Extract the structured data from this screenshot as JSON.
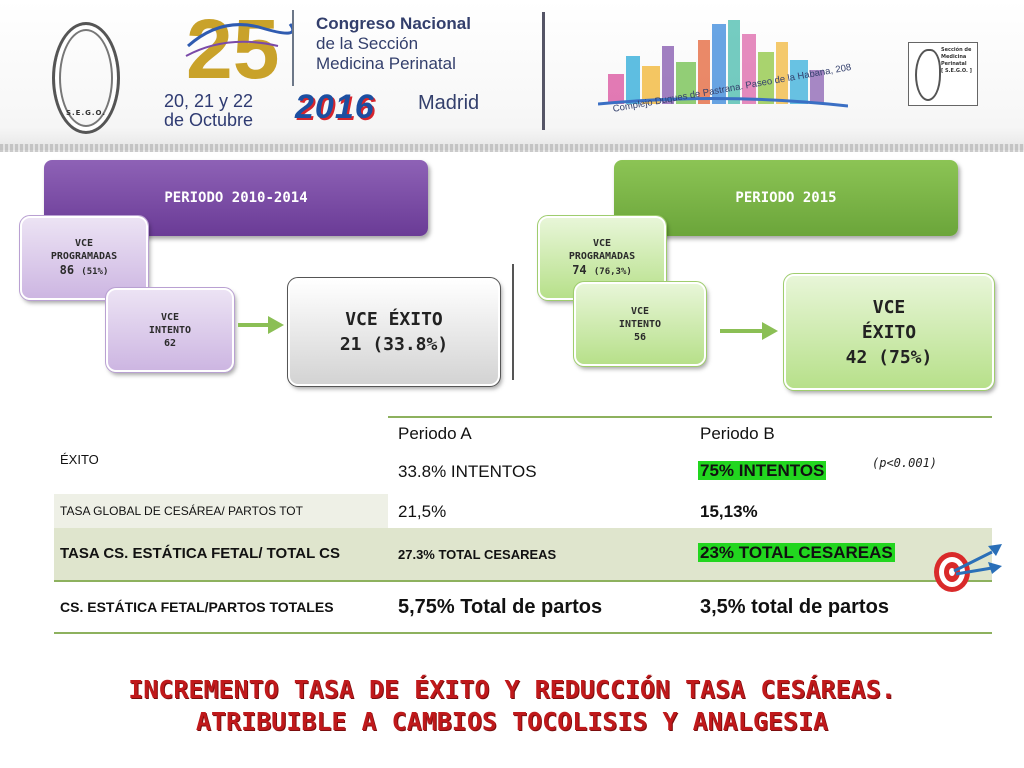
{
  "header": {
    "anniversary": "25",
    "congress_line1": "Congreso Nacional",
    "congress_line2": "de la Sección",
    "congress_line3": "Medicina Perinatal",
    "dates_line1": "20, 21 y 22",
    "dates_line2": "de Octubre",
    "year": "2016",
    "city": "Madrid",
    "venue": "Complejo Duques de Pastrana. Paseo de la Habana, 208",
    "seal_text": "S.E.G.O.",
    "section_logo_lines": [
      "Sección de",
      "Medicina",
      "Perinatal",
      "[ S.E.G.O. ]"
    ]
  },
  "periods": {
    "a": {
      "title": "PERIODO 2010-2014",
      "programadas_label_1": "VCE",
      "programadas_label_2": "PROGRAMADAS",
      "programadas_value": "86",
      "programadas_pct": "(51%)",
      "intento_label_1": "VCE",
      "intento_label_2": "INTENTO",
      "intento_value": "62",
      "exito_line1": "VCE ÉXITO",
      "exito_line2": "21 (33.8%)"
    },
    "b": {
      "title": "PERIODO 2015",
      "programadas_label_1": "VCE",
      "programadas_label_2": "PROGRAMADAS",
      "programadas_value": "74",
      "programadas_pct": "(76,3%)",
      "intento_label_1": "VCE",
      "intento_label_2": "INTENTO",
      "intento_value": "56",
      "exito_line1": "VCE",
      "exito_line2": "ÉXITO",
      "exito_line3": "42 (75%)"
    }
  },
  "table": {
    "col_a": "Periodo A",
    "col_b": "Periodo B",
    "p_value": "(p<0.001)",
    "rows": [
      {
        "label": "ÉXITO",
        "a": "33.8% INTENTOS",
        "b": "75% INTENTOS"
      },
      {
        "label": "TASA GLOBAL DE CESÁREA/ PARTOS TOT",
        "a": "21,5%",
        "b": "15,13%"
      },
      {
        "label": "TASA CS. ESTÁTICA FETAL/ TOTAL CS",
        "a": "27.3% TOTAL CESAREAS",
        "b": "23% TOTAL CESAREAS"
      },
      {
        "label": "CS. ESTÁTICA FETAL/PARTOS TOTALES",
        "a": "5,75% Total de partos",
        "b": "3,5% total de partos"
      }
    ]
  },
  "conclusion": {
    "line1": "INCREMENTO TASA DE ÉXITO Y REDUCCIÓN TASA CESÁREAS.",
    "line2": "ATRIBUIBLE A CAMBIOS TOCOLISIS Y ANALGESIA"
  },
  "colors": {
    "purple": "#7a4aa8",
    "green": "#7cb648",
    "highlight": "#22d61f",
    "conclusion_red": "#c0191b"
  }
}
